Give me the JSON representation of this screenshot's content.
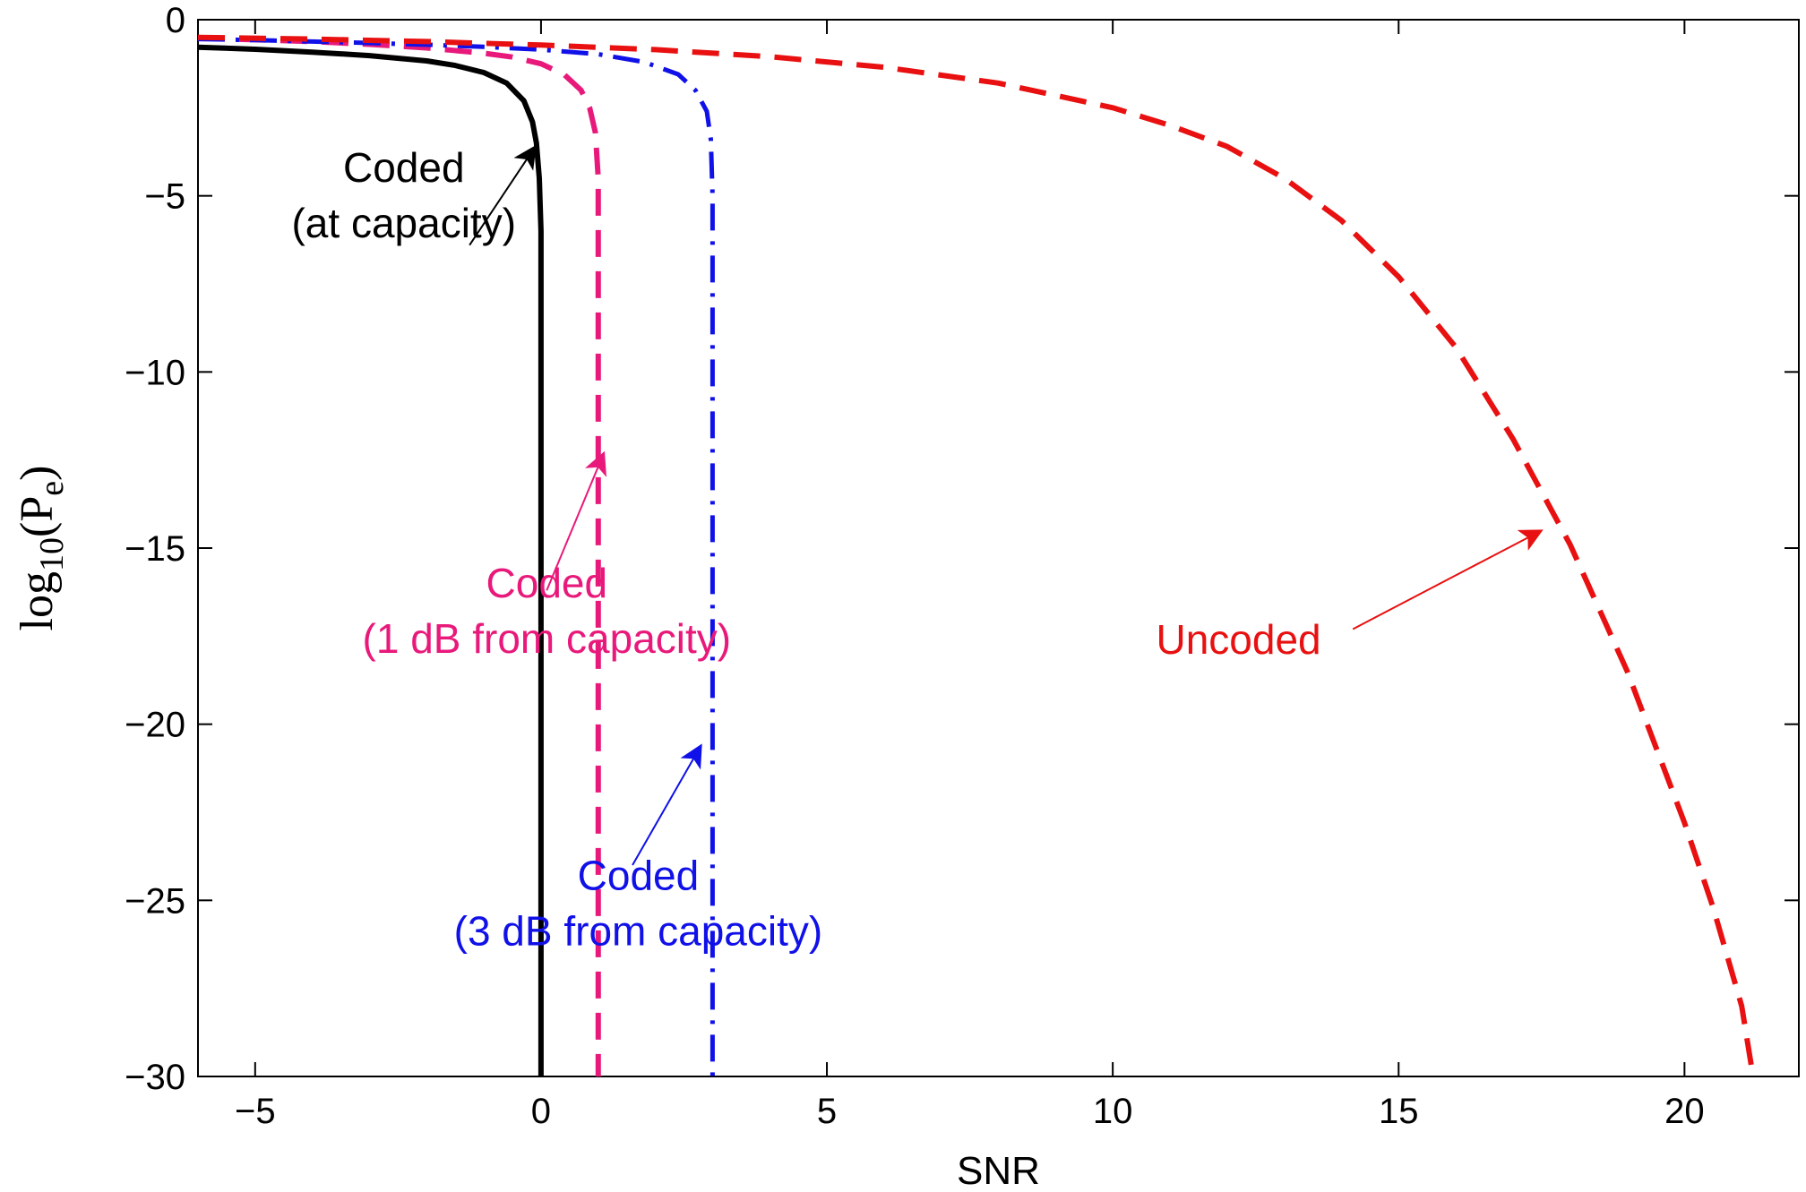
{
  "chart_data": {
    "type": "line",
    "xlabel": "SNR",
    "ylabel": {
      "main": "log",
      "sub1": "10",
      "paren_open": "(P",
      "sub2": "e",
      "paren_close": ")"
    },
    "xlim": [
      -6,
      22
    ],
    "ylim": [
      -30,
      0
    ],
    "xticks": [
      -5,
      0,
      5,
      10,
      15,
      20
    ],
    "yticks": [
      0,
      -5,
      -10,
      -15,
      -20,
      -25,
      -30
    ],
    "xtick_labels": [
      "−5",
      "0",
      "5",
      "10",
      "15",
      "20"
    ],
    "ytick_labels": [
      "0",
      "−5",
      "−10",
      "−15",
      "−20",
      "−25",
      "−30"
    ],
    "grid": false,
    "legend": "none",
    "series": [
      {
        "id": "cap",
        "color": "#000000",
        "style": "solid",
        "x": [
          -6,
          -5,
          -4,
          -3,
          -2,
          -1.5,
          -1,
          -0.6,
          -0.3,
          -0.15,
          -0.08,
          -0.03,
          0,
          0
        ],
        "y": [
          -0.78,
          -0.84,
          -0.92,
          -1.02,
          -1.17,
          -1.3,
          -1.5,
          -1.8,
          -2.3,
          -2.9,
          -3.5,
          -4.5,
          -6,
          -30
        ]
      },
      {
        "id": "oneDb",
        "color": "#e8197a",
        "style": "dashed",
        "x": [
          -6,
          -5,
          -4,
          -3,
          -2,
          -1,
          -0.5,
          0,
          0.4,
          0.7,
          0.85,
          0.95,
          1,
          1
        ],
        "y": [
          -0.52,
          -0.57,
          -0.62,
          -0.7,
          -0.8,
          -0.95,
          -1.06,
          -1.25,
          -1.55,
          -2.0,
          -2.5,
          -3.2,
          -4.5,
          -30
        ]
      },
      {
        "id": "threeDb",
        "color": "#1010e8",
        "style": "dashdot",
        "x": [
          -6,
          -5,
          -4,
          -3,
          -2,
          -1,
          0,
          1,
          1.8,
          2.4,
          2.7,
          2.9,
          2.97,
          3,
          3
        ],
        "y": [
          -0.55,
          -0.58,
          -0.62,
          -0.66,
          -0.71,
          -0.77,
          -0.85,
          -0.98,
          -1.2,
          -1.55,
          -2.0,
          -2.6,
          -3.4,
          -5,
          -30
        ]
      },
      {
        "id": "uncoded",
        "color": "#e81010",
        "style": "dashed",
        "x": [
          -6,
          -4,
          -2,
          0,
          2,
          4,
          6,
          8,
          10,
          11,
          12,
          13,
          14,
          15,
          16,
          17,
          18,
          19,
          20,
          20.5,
          21,
          21.2
        ],
        "y": [
          -0.5,
          -0.55,
          -0.62,
          -0.72,
          -0.85,
          -1.05,
          -1.35,
          -1.8,
          -2.5,
          -3.0,
          -3.6,
          -4.5,
          -5.7,
          -7.3,
          -9.3,
          -11.9,
          -14.9,
          -18.5,
          -22.8,
          -25.2,
          -28.0,
          -30
        ]
      }
    ],
    "annotations": [
      {
        "series": "cap",
        "lines": [
          "Coded",
          "(at capacity)"
        ],
        "color": "#000000",
        "text_xy": [
          -2.4,
          -4.6
        ],
        "arrow_from": [
          -1.25,
          -6.4
        ],
        "arrow_to": [
          -0.1,
          -3.6
        ]
      },
      {
        "series": "oneDb",
        "lines": [
          "Coded",
          "(1 dB from capacity)"
        ],
        "color": "#e8197a",
        "text_xy": [
          0.1,
          -16.4
        ],
        "arrow_from": [
          0.1,
          -16.2
        ],
        "arrow_to": [
          1.1,
          -12.3
        ]
      },
      {
        "series": "threeDb",
        "lines": [
          "Coded",
          "(3 dB from capacity)"
        ],
        "color": "#1010e8",
        "text_xy": [
          1.7,
          -24.7
        ],
        "arrow_from": [
          1.6,
          -24.0
        ],
        "arrow_to": [
          2.8,
          -20.6
        ]
      },
      {
        "series": "uncoded",
        "lines": [
          "Uncoded"
        ],
        "color": "#e81010",
        "text_xy": [
          12.2,
          -18.0
        ],
        "arrow_from": [
          14.2,
          -17.3
        ],
        "arrow_to": [
          17.5,
          -14.5
        ]
      }
    ]
  }
}
